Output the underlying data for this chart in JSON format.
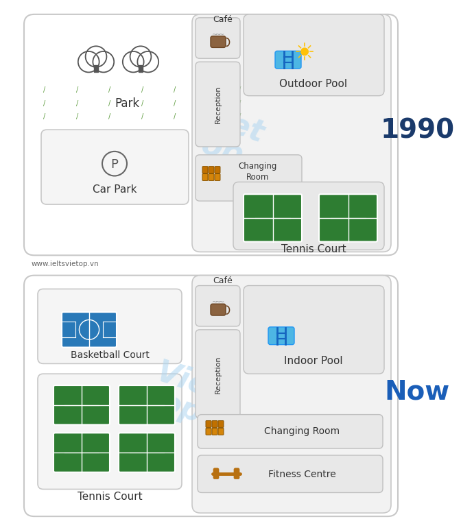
{
  "bg_color": "#ffffff",
  "label_color": "#333333",
  "year_1990_color": "#1a3a6b",
  "year_now_color": "#1a5eb8",
  "watermark_color": "#aed6f1",
  "website": "www.ieltsvietop.vn",
  "title_1990": "1990",
  "title_now": "Now",
  "park_green": "#5a9a3a",
  "tennis_green": "#2e7d32",
  "basketball_blue": "#2979b8",
  "outer_face": "#ffffff",
  "outer_edge": "#c8c8c8",
  "inner_face": "#f2f2f2",
  "inner_edge": "#c8c8c8",
  "box_face": "#e8e8e8",
  "box_edge": "#c0c0c0",
  "white_box_face": "#f8f8f8",
  "white_box_edge": "#c0c0c0",
  "tree_edge": "#555555",
  "parking_circle_color": "#555555",
  "changing_amber": "#c8880a",
  "fitness_amber": "#b87010"
}
